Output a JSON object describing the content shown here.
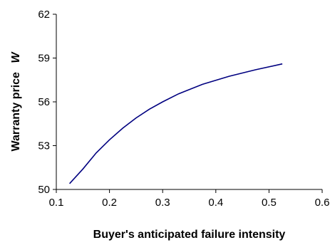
{
  "chart_data": {
    "type": "line",
    "title": "",
    "xlabel": "Buyer's anticipated failure intensity",
    "ylabel": "Warranty price",
    "ylabel_symbol": "W",
    "xlim": [
      0.1,
      0.6
    ],
    "ylim": [
      50,
      62
    ],
    "xticks": [
      "0.1",
      "0.2",
      "0.3",
      "0.4",
      "0.5",
      "0.6"
    ],
    "yticks": [
      "50",
      "53",
      "56",
      "59",
      "62"
    ],
    "grid": false,
    "series": [
      {
        "color": "#000080",
        "x": [
          0.125,
          0.15,
          0.175,
          0.2,
          0.225,
          0.25,
          0.275,
          0.3,
          0.33,
          0.375,
          0.425,
          0.475,
          0.525
        ],
        "y": [
          50.4,
          51.4,
          52.5,
          53.4,
          54.2,
          54.9,
          55.5,
          56.0,
          56.55,
          57.2,
          57.75,
          58.2,
          58.6
        ]
      }
    ]
  }
}
